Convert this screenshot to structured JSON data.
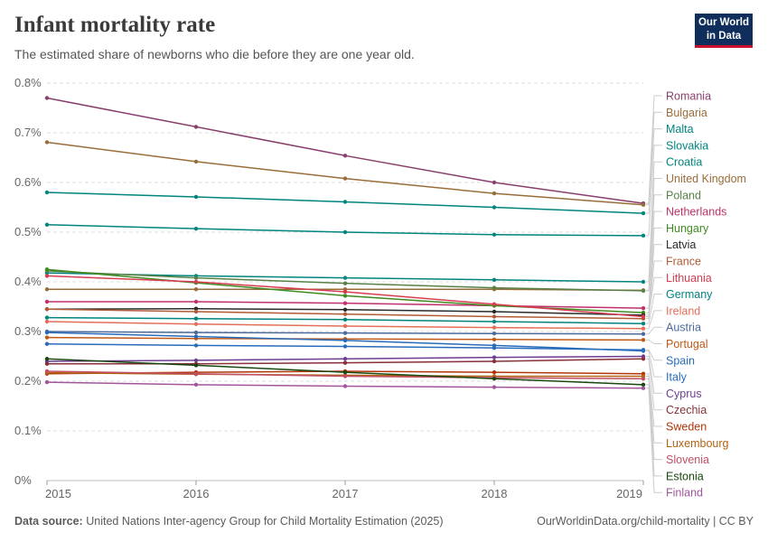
{
  "header": {
    "title": "Infant mortality rate",
    "subtitle": "The estimated share of newborns who die before they are one year old.",
    "logo_line1": "Our World",
    "logo_line2": "in Data"
  },
  "footer": {
    "source_label": "Data source:",
    "source_text": "United Nations Inter-agency Group for Child Mortality Estimation (2025)",
    "url_text": "OurWorldinData.org/child-mortality | CC BY"
  },
  "chart_data": {
    "type": "line",
    "x": [
      2015,
      2016,
      2017,
      2018,
      2019
    ],
    "x_tick_labels": [
      "2015",
      "2016",
      "2017",
      "2018",
      "2019"
    ],
    "ylim": [
      0,
      0.8
    ],
    "y_ticks": [
      0,
      0.1,
      0.2,
      0.3,
      0.4,
      0.5,
      0.6,
      0.7,
      0.8
    ],
    "y_tick_labels": [
      "0%",
      "0.1%",
      "0.2%",
      "0.3%",
      "0.4%",
      "0.5%",
      "0.6%",
      "0.7%",
      "0.8%"
    ],
    "gridlines": true,
    "legend_position": "right",
    "series": [
      {
        "name": "Romania",
        "color": "#883e6b",
        "values": [
          0.77,
          0.712,
          0.654,
          0.6,
          0.558
        ]
      },
      {
        "name": "Bulgaria",
        "color": "#996d39",
        "values": [
          0.681,
          0.642,
          0.608,
          0.578,
          0.555
        ]
      },
      {
        "name": "Malta",
        "color": "#00847e",
        "values": [
          0.58,
          0.571,
          0.561,
          0.55,
          0.538
        ]
      },
      {
        "name": "Slovakia",
        "color": "#00847e",
        "values": [
          0.515,
          0.507,
          0.5,
          0.495,
          0.493
        ]
      },
      {
        "name": "Croatia",
        "color": "#00847e",
        "values": [
          0.418,
          0.412,
          0.408,
          0.404,
          0.4
        ]
      },
      {
        "name": "United Kingdom",
        "color": "#996d39",
        "values": [
          0.385,
          0.385,
          0.385,
          0.385,
          0.383
        ]
      },
      {
        "name": "Poland",
        "color": "#578145",
        "values": [
          0.422,
          0.408,
          0.397,
          0.388,
          0.382
        ]
      },
      {
        "name": "Netherlands",
        "color": "#c0306c",
        "values": [
          0.36,
          0.36,
          0.357,
          0.352,
          0.347
        ]
      },
      {
        "name": "Hungary",
        "color": "#3f8a1f",
        "values": [
          0.425,
          0.398,
          0.372,
          0.352,
          0.338
        ]
      },
      {
        "name": "Latvia",
        "color": "#2a2a2a",
        "values": [
          0.345,
          0.346,
          0.344,
          0.34,
          0.333
        ]
      },
      {
        "name": "France",
        "color": "#b05a36",
        "values": [
          0.345,
          0.34,
          0.335,
          0.33,
          0.326
        ]
      },
      {
        "name": "Lithuania",
        "color": "#d73c50",
        "values": [
          0.412,
          0.4,
          0.38,
          0.355,
          0.33
        ]
      },
      {
        "name": "Germany",
        "color": "#00847e",
        "values": [
          0.328,
          0.326,
          0.324,
          0.32,
          0.316
        ]
      },
      {
        "name": "Ireland",
        "color": "#e56e5a",
        "values": [
          0.32,
          0.315,
          0.311,
          0.308,
          0.306
        ]
      },
      {
        "name": "Austria",
        "color": "#4c6a9c",
        "values": [
          0.3,
          0.298,
          0.297,
          0.296,
          0.295
        ]
      },
      {
        "name": "Portugal",
        "color": "#c05917",
        "values": [
          0.288,
          0.286,
          0.285,
          0.284,
          0.283
        ]
      },
      {
        "name": "Spain",
        "color": "#286bbb",
        "values": [
          0.275,
          0.272,
          0.27,
          0.267,
          0.263
        ]
      },
      {
        "name": "Italy",
        "color": "#286bbb",
        "values": [
          0.298,
          0.29,
          0.282,
          0.272,
          0.261
        ]
      },
      {
        "name": "Cyprus",
        "color": "#6d3e91",
        "values": [
          0.24,
          0.242,
          0.245,
          0.248,
          0.25
        ]
      },
      {
        "name": "Czechia",
        "color": "#883039",
        "values": [
          0.235,
          0.235,
          0.237,
          0.24,
          0.245
        ]
      },
      {
        "name": "Sweden",
        "color": "#b13507",
        "values": [
          0.215,
          0.218,
          0.22,
          0.218,
          0.215
        ]
      },
      {
        "name": "Luxembourg",
        "color": "#b16214",
        "values": [
          0.217,
          0.214,
          0.212,
          0.21,
          0.21
        ]
      },
      {
        "name": "Slovenia",
        "color": "#c15065",
        "values": [
          0.22,
          0.215,
          0.21,
          0.207,
          0.205
        ]
      },
      {
        "name": "Estonia",
        "color": "#18470f",
        "values": [
          0.245,
          0.232,
          0.218,
          0.205,
          0.193
        ]
      },
      {
        "name": "Finland",
        "color": "#a2559c",
        "values": [
          0.198,
          0.193,
          0.19,
          0.188,
          0.186
        ]
      }
    ]
  }
}
